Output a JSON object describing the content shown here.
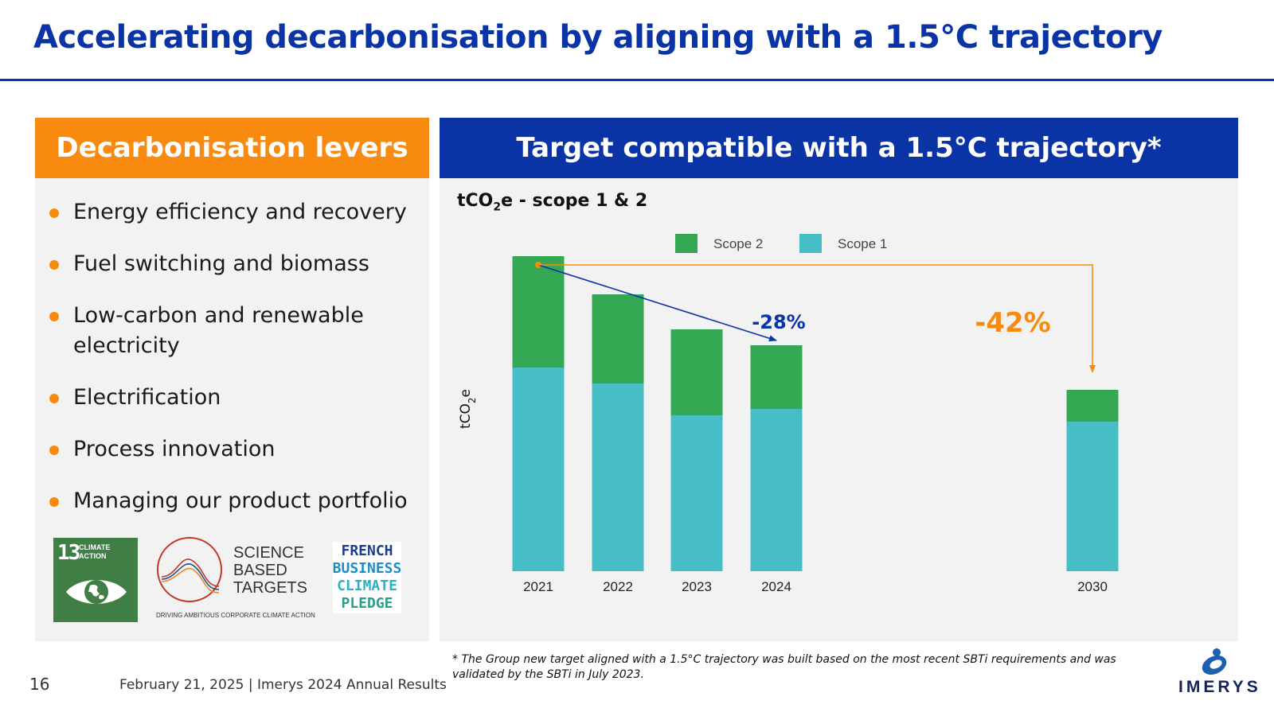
{
  "header": {
    "title": "Accelerating decarbonisation by aligning with a 1.5°C trajectory"
  },
  "left": {
    "heading": "Decarbonisation levers",
    "levers": [
      "Energy efficiency and recovery",
      "Fuel switching and biomass",
      "Low-carbon and renewable electricity",
      "Electrification",
      "Process innovation",
      "Managing our product portfolio"
    ],
    "logos": {
      "sdg_number": "13",
      "sdg_label": "CLIMATE ACTION",
      "sbt_words": [
        "SCIENCE",
        "BASED",
        "TARGETS"
      ],
      "sbt_tagline": "DRIVING AMBITIOUS CORPORATE CLIMATE ACTION",
      "fbcp_lines": [
        "FRENCH",
        "BUSINESS",
        "CLIMATE",
        "PLEDGE"
      ]
    }
  },
  "right": {
    "heading": "Target compatible with a 1.5°C trajectory*",
    "caption_pre": "tCO",
    "caption_sub": "2",
    "caption_post": "e - scope 1 & 2"
  },
  "chart_data": {
    "type": "bar",
    "stacked": true,
    "categories": [
      "2021",
      "2022",
      "2023",
      "2024",
      "2030"
    ],
    "series": [
      {
        "name": "Scope 1",
        "color": "#47bdc6",
        "values": [
          64,
          59,
          49,
          51,
          47
        ]
      },
      {
        "name": "Scope 2",
        "color": "#35a853",
        "values": [
          35,
          28,
          27,
          20,
          10
        ]
      }
    ],
    "legend_order": [
      "Scope 2",
      "Scope 1"
    ],
    "legend_position": "top",
    "ylabel_pre": "tCO",
    "ylabel_sub": "2",
    "ylabel_post": "e",
    "y_axis_visible": false,
    "ylim": [
      0,
      100
    ],
    "annotations": [
      {
        "text": "-28%",
        "color": "#0a33a6",
        "from": "2021",
        "to": "2024"
      },
      {
        "text": "-42%",
        "color": "#f88a10",
        "from": "2021",
        "to": "2030"
      }
    ]
  },
  "footer": {
    "footnote": "* The Group new target aligned with a 1.5°C trajectory was built based on the most recent SBTi requirements and was validated by the SBTi in July 2023.",
    "page_number": "16",
    "text": "February 21, 2025 | Imerys 2024 Annual Results",
    "brand": "IMERYS"
  }
}
